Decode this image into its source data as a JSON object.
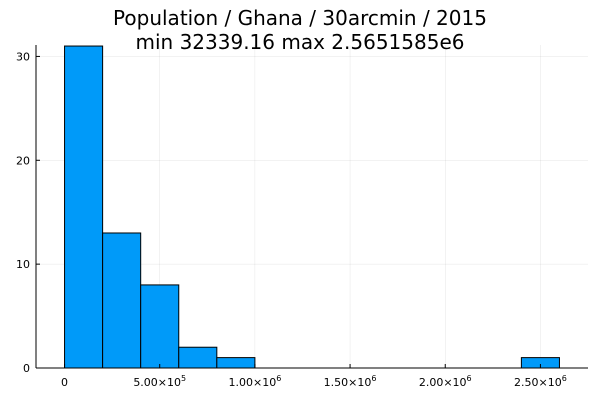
{
  "chart_data": {
    "type": "bar",
    "title_lines": [
      "Population / Ghana / 30arcmin / 2015",
      "min 32339.16  max 2.5651585e6"
    ],
    "xlabel": "",
    "ylabel": "",
    "bin_width": 200000,
    "bins": [
      {
        "start": 0,
        "end": 200000,
        "count": 31
      },
      {
        "start": 200000,
        "end": 400000,
        "count": 13
      },
      {
        "start": 400000,
        "end": 600000,
        "count": 8
      },
      {
        "start": 600000,
        "end": 800000,
        "count": 2
      },
      {
        "start": 800000,
        "end": 1000000,
        "count": 1
      },
      {
        "start": 1000000,
        "end": 1200000,
        "count": 0
      },
      {
        "start": 1200000,
        "end": 1400000,
        "count": 0
      },
      {
        "start": 1400000,
        "end": 1600000,
        "count": 0
      },
      {
        "start": 1600000,
        "end": 1800000,
        "count": 0
      },
      {
        "start": 1800000,
        "end": 2000000,
        "count": 0
      },
      {
        "start": 2000000,
        "end": 2200000,
        "count": 0
      },
      {
        "start": 2200000,
        "end": 2400000,
        "count": 0
      },
      {
        "start": 2400000,
        "end": 2600000,
        "count": 1
      }
    ],
    "xlim": [
      -150000,
      2750000
    ],
    "ylim": [
      0,
      31
    ],
    "x_ticks": [
      {
        "value": 0,
        "mantissa": "0",
        "exp": ""
      },
      {
        "value": 500000,
        "mantissa": "5.00×10",
        "exp": "5"
      },
      {
        "value": 1000000,
        "mantissa": "1.00×10",
        "exp": "6"
      },
      {
        "value": 1500000,
        "mantissa": "1.50×10",
        "exp": "6"
      },
      {
        "value": 2000000,
        "mantissa": "2.00×10",
        "exp": "6"
      },
      {
        "value": 2500000,
        "mantissa": "2.50×10",
        "exp": "6"
      }
    ],
    "y_ticks": [
      {
        "value": 0,
        "label": "0"
      },
      {
        "value": 10,
        "label": "10"
      },
      {
        "value": 20,
        "label": "20"
      },
      {
        "value": 30,
        "label": "30"
      }
    ],
    "grid": true,
    "legend": "none",
    "bar_color": "#009af9",
    "bar_edge_color": "#000000"
  }
}
